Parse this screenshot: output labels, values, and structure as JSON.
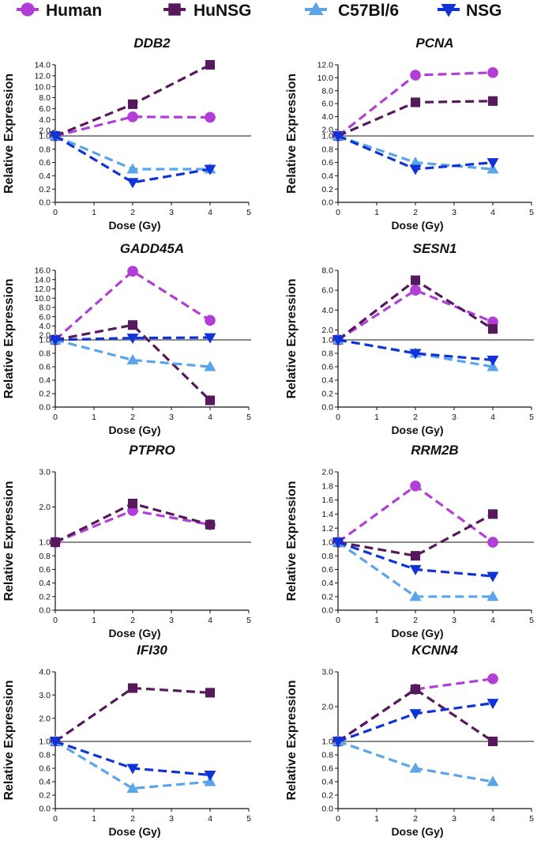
{
  "legend": [
    {
      "name": "Human",
      "color": "#b13ed6",
      "marker": "circle"
    },
    {
      "name": "HuNSG",
      "color": "#561a5c",
      "marker": "square"
    },
    {
      "name": "C57Bl/6",
      "color": "#5aa4ec",
      "marker": "triangle-up"
    },
    {
      "name": "NSG",
      "color": "#0f33d6",
      "marker": "triangle-down"
    }
  ],
  "chart_data": [
    {
      "type": "line",
      "title": "DDB2",
      "xlabel": "Dose (Gy)",
      "ylabel": "Relative Expression",
      "xlim": [
        0,
        5
      ],
      "xticks": [
        "0",
        "1",
        "2",
        "3",
        "4",
        "5"
      ],
      "ylim": [
        0,
        14
      ],
      "axis_break_at": 1.0,
      "reference_line": 1.0,
      "yticks_lower": [
        "0.0",
        "0.2",
        "0.4",
        "0.6",
        "0.8",
        "1.0"
      ],
      "yticks_upper": [
        "2.0",
        "4.0",
        "6.0",
        "8.0",
        "10.0",
        "12.0",
        "14.0"
      ],
      "x": [
        0,
        2,
        4
      ],
      "series": [
        {
          "name": "Human",
          "values": [
            1.0,
            4.5,
            4.4
          ]
        },
        {
          "name": "HuNSG",
          "values": [
            1.0,
            6.8,
            14.0
          ]
        },
        {
          "name": "C57Bl/6",
          "values": [
            1.0,
            0.5,
            0.5
          ]
        },
        {
          "name": "NSG",
          "values": [
            1.0,
            0.3,
            0.5
          ]
        }
      ]
    },
    {
      "type": "line",
      "title": "PCNA",
      "xlabel": "Dose (Gy)",
      "ylabel": "Relative Expression",
      "xlim": [
        0,
        5
      ],
      "xticks": [
        "0",
        "1",
        "2",
        "3",
        "4",
        "5"
      ],
      "ylim": [
        0,
        12
      ],
      "axis_break_at": 1.0,
      "reference_line": 1.0,
      "yticks_lower": [
        "0.0",
        "0.2",
        "0.4",
        "0.6",
        "0.8",
        "1.0"
      ],
      "yticks_upper": [
        "2.0",
        "4.0",
        "6.0",
        "8.0",
        "10.0",
        "12.0"
      ],
      "x": [
        0,
        2,
        4
      ],
      "series": [
        {
          "name": "Human",
          "values": [
            1.0,
            10.4,
            10.8
          ]
        },
        {
          "name": "HuNSG",
          "values": [
            1.0,
            6.2,
            6.4
          ]
        },
        {
          "name": "C57Bl/6",
          "values": [
            1.0,
            0.6,
            0.5
          ]
        },
        {
          "name": "NSG",
          "values": [
            1.0,
            0.5,
            0.6
          ]
        }
      ]
    },
    {
      "type": "line",
      "title": "GADD45A",
      "xlabel": "Dose (Gy)",
      "ylabel": "Relative Expression",
      "xlim": [
        0,
        5
      ],
      "xticks": [
        "0",
        "1",
        "2",
        "3",
        "4",
        "5"
      ],
      "ylim": [
        0,
        16
      ],
      "axis_break_at": 1.0,
      "reference_line": 1.0,
      "yticks_lower": [
        "0.0",
        "0.2",
        "0.4",
        "0.6",
        "0.8",
        "1.0"
      ],
      "yticks_upper": [
        "2.0",
        "4.0",
        "6.0",
        "8.0",
        "10.0",
        "12.0",
        "14.0",
        "16.0"
      ],
      "x": [
        0,
        2,
        4
      ],
      "series": [
        {
          "name": "Human",
          "values": [
            1.0,
            15.8,
            5.2
          ]
        },
        {
          "name": "HuNSG",
          "values": [
            1.0,
            4.2,
            0.1
          ]
        },
        {
          "name": "C57Bl/6",
          "values": [
            1.0,
            0.7,
            0.6
          ]
        },
        {
          "name": "NSG",
          "values": [
            1.0,
            1.4,
            1.5
          ]
        }
      ]
    },
    {
      "type": "line",
      "title": "SESN1",
      "xlabel": "Dose (Gy)",
      "ylabel": "Relative Expression",
      "xlim": [
        0,
        5
      ],
      "xticks": [
        "0",
        "1",
        "2",
        "3",
        "4",
        "5"
      ],
      "ylim": [
        0,
        8
      ],
      "axis_break_at": 1.0,
      "reference_line": 1.0,
      "yticks_lower": [
        "0.0",
        "0.2",
        "0.4",
        "0.6",
        "0.8",
        "1.0"
      ],
      "yticks_upper": [
        "2.0",
        "4.0",
        "6.0",
        "8.0"
      ],
      "x": [
        0,
        2,
        4
      ],
      "series": [
        {
          "name": "Human",
          "values": [
            1.0,
            6.0,
            2.8
          ]
        },
        {
          "name": "HuNSG",
          "values": [
            1.0,
            7.0,
            2.1
          ]
        },
        {
          "name": "C57Bl/6",
          "values": [
            1.0,
            0.8,
            0.6
          ]
        },
        {
          "name": "NSG",
          "values": [
            1.0,
            0.8,
            0.7
          ]
        }
      ]
    },
    {
      "type": "line",
      "title": "PTPRO",
      "xlabel": "Dose (Gy)",
      "ylabel": "Relative Expression",
      "xlim": [
        0,
        5
      ],
      "xticks": [
        "0",
        "1",
        "2",
        "3",
        "4",
        "5"
      ],
      "ylim": [
        0,
        3
      ],
      "axis_break_at": 1.0,
      "reference_line": 1.0,
      "yticks_lower": [
        "0.0",
        "0.2",
        "0.4",
        "0.6",
        "0.8",
        "1.0"
      ],
      "yticks_upper": [
        "2.0",
        "3.0"
      ],
      "x": [
        0,
        2,
        4
      ],
      "series": [
        {
          "name": "Human",
          "values": [
            1.0,
            1.9,
            1.5
          ]
        },
        {
          "name": "HuNSG",
          "values": [
            1.0,
            2.1,
            1.5
          ]
        }
      ]
    },
    {
      "type": "line",
      "title": "RRM2B",
      "xlabel": "Dose (Gy)",
      "ylabel": "Relative Expression",
      "xlim": [
        0,
        5
      ],
      "xticks": [
        "0",
        "1",
        "2",
        "3",
        "4",
        "5"
      ],
      "ylim": [
        0,
        2
      ],
      "axis_break_at": 1.0,
      "reference_line": 1.0,
      "yticks_lower": [
        "0.0",
        "0.2",
        "0.4",
        "0.6",
        "0.8",
        "1.0"
      ],
      "yticks_upper": [
        "1.2",
        "1.4",
        "1.6",
        "1.8",
        "2.0"
      ],
      "x": [
        0,
        2,
        4
      ],
      "series": [
        {
          "name": "Human",
          "values": [
            1.0,
            1.8,
            1.0
          ]
        },
        {
          "name": "HuNSG",
          "values": [
            1.0,
            0.8,
            1.4
          ]
        },
        {
          "name": "C57Bl/6",
          "values": [
            1.0,
            0.2,
            0.2
          ]
        },
        {
          "name": "NSG",
          "values": [
            1.0,
            0.6,
            0.5
          ]
        }
      ]
    },
    {
      "type": "line",
      "title": "IFI30",
      "xlabel": "Dose (Gy)",
      "ylabel": "Relative Expression",
      "xlim": [
        0,
        5
      ],
      "xticks": [
        "0",
        "1",
        "2",
        "3",
        "4",
        "5"
      ],
      "ylim": [
        0,
        4
      ],
      "axis_break_at": 1.0,
      "reference_line": 1.0,
      "yticks_lower": [
        "0.0",
        "0.2",
        "0.4",
        "0.6",
        "0.8",
        "1.0"
      ],
      "yticks_upper": [
        "2.0",
        "3.0",
        "4.0"
      ],
      "x": [
        0,
        2,
        4
      ],
      "series": [
        {
          "name": "HuNSG",
          "values": [
            1.0,
            3.3,
            3.1
          ]
        },
        {
          "name": "C57Bl/6",
          "values": [
            1.0,
            0.3,
            0.4
          ]
        },
        {
          "name": "NSG",
          "values": [
            1.0,
            0.6,
            0.5
          ]
        }
      ]
    },
    {
      "type": "line",
      "title": "KCNN4",
      "xlabel": "Dose (Gy)",
      "ylabel": "Relative Expression",
      "xlim": [
        0,
        5
      ],
      "xticks": [
        "0",
        "1",
        "2",
        "3",
        "4",
        "5"
      ],
      "ylim": [
        0,
        3
      ],
      "axis_break_at": 1.0,
      "reference_line": 1.0,
      "yticks_lower": [
        "0.0",
        "0.2",
        "0.4",
        "0.6",
        "0.8",
        "1.0"
      ],
      "yticks_upper": [
        "2.0",
        "3.0"
      ],
      "x": [
        0,
        2,
        4
      ],
      "series": [
        {
          "name": "Human",
          "values": [
            1.0,
            2.5,
            2.8
          ]
        },
        {
          "name": "HuNSG",
          "values": [
            1.0,
            2.5,
            1.0
          ]
        },
        {
          "name": "C57Bl/6",
          "values": [
            1.0,
            0.6,
            0.4
          ]
        },
        {
          "name": "NSG",
          "values": [
            1.0,
            1.8,
            2.1
          ]
        }
      ]
    }
  ]
}
